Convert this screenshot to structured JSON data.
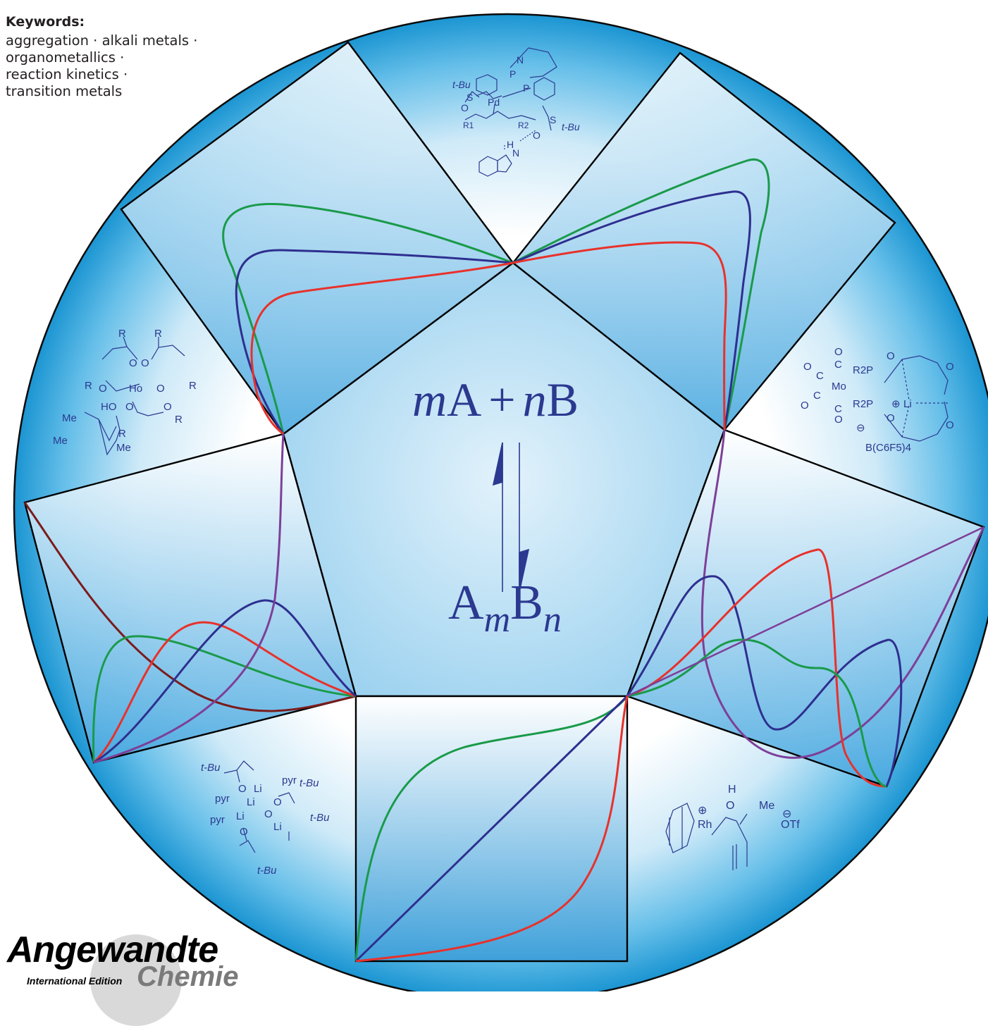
{
  "keywords": {
    "heading": "Keywords:",
    "lines": [
      "aggregation · alkali metals ·",
      "organometallics ·",
      "reaction kinetics ·",
      "transition metals"
    ]
  },
  "center": {
    "equation_top": {
      "m": "m",
      "A": "A",
      "plus": "+",
      "n": "n",
      "B": "B"
    },
    "equation_bottom": {
      "A": "A",
      "m": "m",
      "B": "B",
      "n": "n"
    }
  },
  "structure_labels": {
    "pd": [
      "t-Bu",
      "S",
      "O",
      "Pd",
      "P",
      "P",
      "N",
      "R1",
      "R2",
      "S",
      "t-Bu",
      "O",
      "H",
      "N"
    ],
    "ho": [
      "R",
      "R",
      "O",
      "O",
      "R",
      "O",
      "Ho",
      "O",
      "R",
      "HO",
      "O",
      "O",
      "R",
      "Me",
      "Me",
      "Me",
      "R"
    ],
    "mo": [
      "O",
      "C",
      "O",
      "C",
      "O",
      "C",
      "Mo",
      "C",
      "O",
      "C",
      "O",
      "R2P",
      "R2P",
      "O",
      "O",
      "O",
      "O",
      "Li",
      "⊕",
      "⊖",
      "B(C6F5)4"
    ],
    "li": [
      "t-Bu",
      "O",
      "Li",
      "pyr",
      "t-Bu",
      "pyr",
      "Li",
      "O",
      "pyr",
      "Li",
      "O",
      "Li",
      "t-Bu",
      "O",
      "t-Bu"
    ],
    "rh": [
      "H",
      "O",
      "Me",
      "Rh",
      "⊕",
      "⊖",
      "OTf"
    ]
  },
  "logo": {
    "main": "Angewandte",
    "sub": "International Edition",
    "chemie": "Chemie"
  },
  "colors": {
    "green": "#1a9a4a",
    "blue": "#2e2f8f",
    "red": "#e8312b",
    "purple": "#7d3f98",
    "darkred": "#7a1c1c",
    "text_blue": "#2b3990",
    "sphere_edge": "#1b95d2",
    "frame": "#000000"
  }
}
